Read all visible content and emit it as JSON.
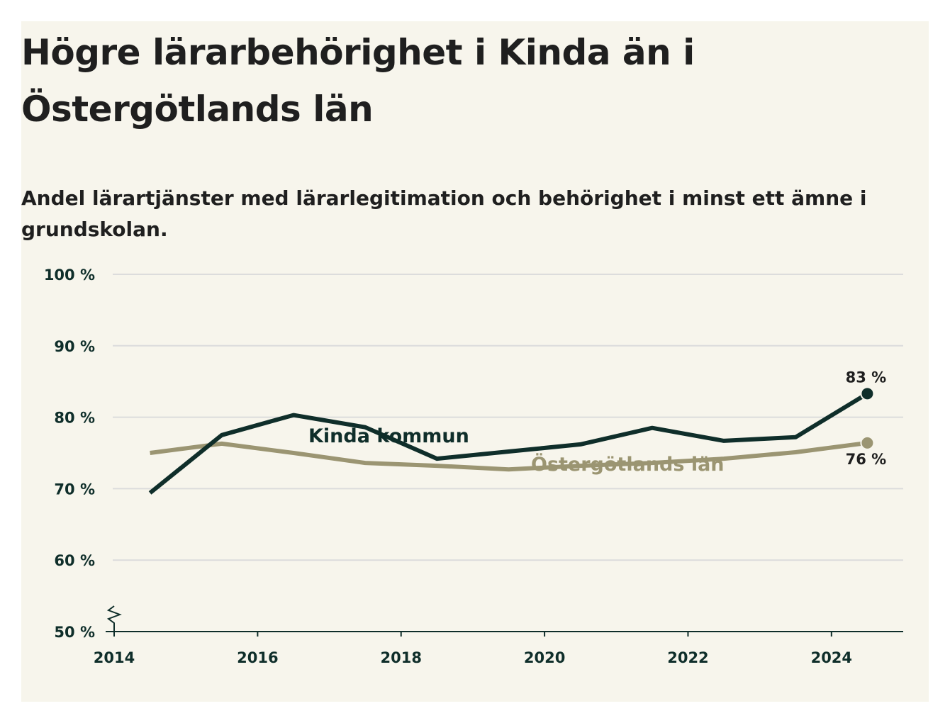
{
  "title": "Högre lärarbehörighet i Kinda än i Östergötlands län",
  "subtitle": "Andel lärartjänster med lärarlegitimation och behörighet i minst ett ämne i grundskolan.",
  "colors": {
    "background": "#f7f5ec",
    "kinda": "#0f2e2a",
    "ostergotland": "#9b9572",
    "grid": "#dcdcdc",
    "axis": "#0f2e2a"
  },
  "chart_data": {
    "type": "line",
    "x": [
      2014.5,
      2015.5,
      2016.5,
      2017.5,
      2018.5,
      2019.5,
      2020.5,
      2021.5,
      2022.5,
      2023.5,
      2024.5
    ],
    "series": [
      {
        "name": "Kinda kommun",
        "values": [
          69.4,
          77.5,
          80.3,
          78.6,
          74.2,
          75.2,
          76.2,
          78.5,
          76.7,
          77.2,
          83.3
        ]
      },
      {
        "name": "Östergötlands län",
        "values": [
          75.0,
          76.3,
          75.0,
          73.6,
          73.2,
          72.7,
          73.2,
          73.6,
          74.2,
          75.1,
          76.4
        ]
      }
    ],
    "end_labels": [
      "83 %",
      "76 %"
    ],
    "xlim": [
      2014,
      2025
    ],
    "ylim": [
      50,
      100
    ],
    "x_ticks": [
      2014,
      2016,
      2018,
      2020,
      2022,
      2024
    ],
    "x_tick_labels": [
      "2014",
      "2016",
      "2018",
      "2020",
      "2022",
      "2024"
    ],
    "y_ticks": [
      50,
      60,
      70,
      80,
      90,
      100
    ],
    "y_tick_labels": [
      "50 %",
      "60 %",
      "70 %",
      "80 %",
      "90 %",
      "100 %"
    ],
    "grid": true,
    "axis_break": true,
    "legend": "inline labels"
  }
}
